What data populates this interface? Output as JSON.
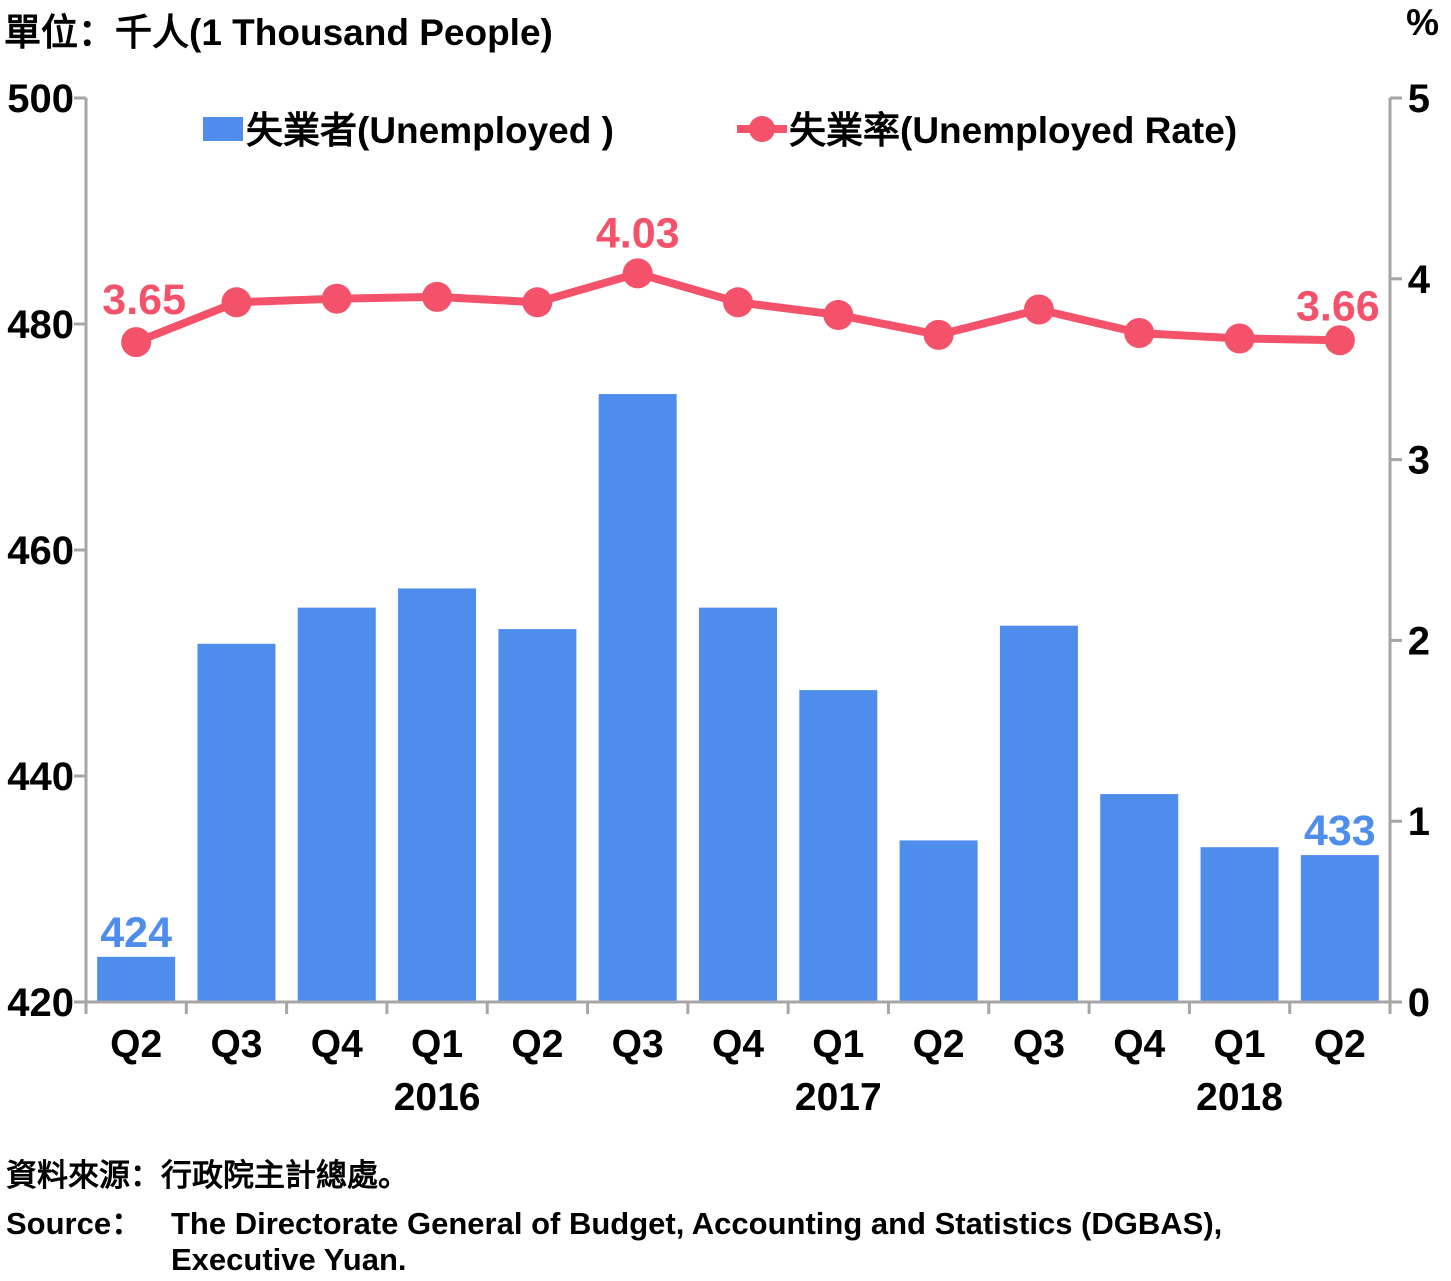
{
  "chart_data": {
    "type": "bar+line",
    "unit_left": "單位：千人(1 Thousand People)",
    "unit_right": "%",
    "categories": [
      "Q2",
      "Q3",
      "Q4",
      "Q1",
      "Q2",
      "Q3",
      "Q4",
      "Q1",
      "Q2",
      "Q3",
      "Q4",
      "Q1",
      "Q2"
    ],
    "year_labels": [
      {
        "label": "2016",
        "index": 3
      },
      {
        "label": "2017",
        "index": 7
      },
      {
        "label": "2018",
        "index": 11
      }
    ],
    "series": [
      {
        "name": "失業者(Unemployed )",
        "type": "bar",
        "axis": "left",
        "color": "#4f8ded",
        "values": [
          424,
          451.7,
          454.9,
          456.6,
          453,
          473.8,
          454.9,
          447.6,
          434.3,
          453.3,
          438.4,
          433.7,
          433
        ],
        "data_labels": {
          "0": "424",
          "12": "433"
        }
      },
      {
        "name": "失業率(Unemployed Rate)",
        "type": "line",
        "axis": "right",
        "color": "#f4526a",
        "values": [
          3.65,
          3.87,
          3.89,
          3.9,
          3.87,
          4.03,
          3.87,
          3.8,
          3.69,
          3.83,
          3.7,
          3.67,
          3.66
        ],
        "data_labels": {
          "0": "3.65",
          "5": "4.03",
          "12": "3.66"
        }
      }
    ],
    "y_left": {
      "min": 420,
      "max": 500,
      "ticks": [
        420,
        440,
        460,
        480,
        500
      ]
    },
    "y_right": {
      "min": 0,
      "max": 5,
      "ticks": [
        0,
        1,
        2,
        3,
        4,
        5
      ]
    },
    "legend_position": "top"
  },
  "source": {
    "zh": "資料來源：行政院主計總處。",
    "en_label": "Source：",
    "en_line1": "The Directorate General of Budget, Accounting and Statistics (DGBAS),",
    "en_line2": "Executive Yuan."
  }
}
